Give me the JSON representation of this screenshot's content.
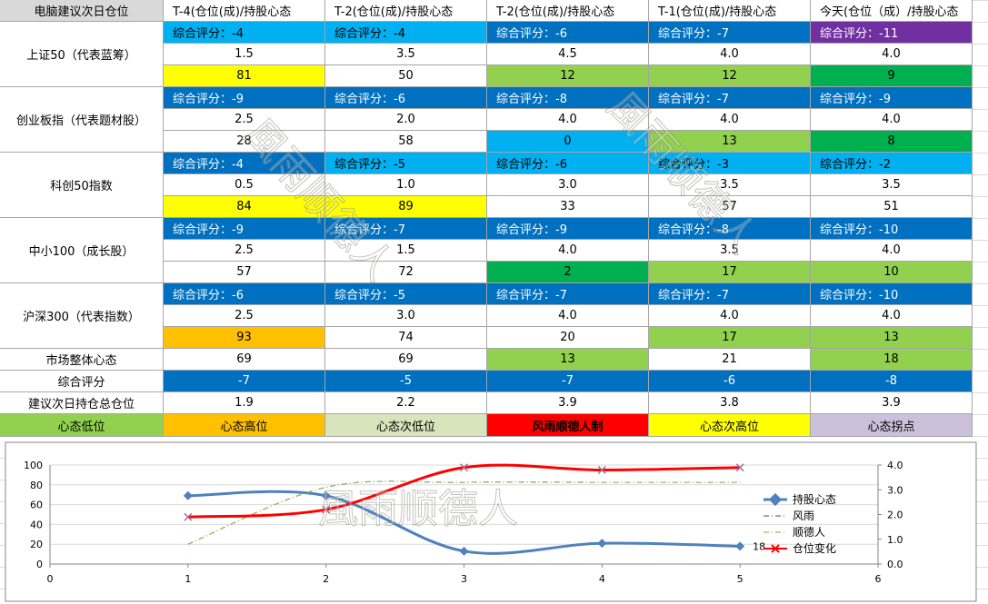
{
  "table": {
    "header": [
      "电脑建议次日仓位",
      "T-4(仓位(成)/持股心态",
      "T-2(仓位(成)/持股心态",
      "T-2(仓位(成)/持股心态",
      "T-1(仓位(成)/持股心态",
      "今天(仓位（成）/持股心态"
    ],
    "groups": [
      {
        "name": "上证50（代表蓝筹）",
        "scores": [
          "综合评分：-4",
          "综合评分：-4",
          "综合评分：-6",
          "综合评分：-7",
          "综合评分：-11"
        ],
        "score_colors": [
          "#00b0f0",
          "#00b0f0",
          "#0070c0",
          "#0070c0",
          "#7030a0"
        ],
        "positions": [
          "1.5",
          "3.5",
          "4.5",
          "4.0",
          "4.0"
        ],
        "moods": [
          81,
          50,
          12,
          12,
          9
        ],
        "mood_colors": [
          "#ffff00",
          "#ffffff",
          "#92d050",
          "#92d050",
          "#00b050"
        ]
      },
      {
        "name": "创业板指（代表题材股）",
        "scores": [
          "综合评分：-9",
          "综合评分：-6",
          "综合评分：-8",
          "综合评分：-7",
          "综合评分：-9"
        ],
        "score_colors": [
          "#0070c0",
          "#0070c0",
          "#0070c0",
          "#0070c0",
          "#0070c0"
        ],
        "positions": [
          "2.5",
          "2.0",
          "4.0",
          "4.0",
          "4.0"
        ],
        "moods": [
          28,
          58,
          0,
          13,
          8
        ],
        "mood_colors": [
          "#ffffff",
          "#ffffff",
          "#00b0f0",
          "#92d050",
          "#00b050"
        ]
      },
      {
        "name": "科创50指数",
        "scores": [
          "综合评分：-4",
          "综合评分：-5",
          "综合评分：-6",
          "综合评分：-3",
          "综合评分：-2"
        ],
        "score_colors": [
          "#0070c0",
          "#00b0f0",
          "#00b0f0",
          "#00b0f0",
          "#00b0f0"
        ],
        "positions": [
          "0.5",
          "1.0",
          "3.0",
          "3.5",
          "3.5"
        ],
        "moods": [
          84,
          89,
          33,
          57,
          51
        ],
        "mood_colors": [
          "#ffff00",
          "#ffff00",
          "#ffffff",
          "#ffffff",
          "#ffffff"
        ]
      },
      {
        "name": "中小100（成长股）",
        "scores": [
          "综合评分：-9",
          "综合评分：-7",
          "综合评分：-9",
          "综合评分：-8",
          "综合评分：-10"
        ],
        "score_colors": [
          "#0070c0",
          "#0070c0",
          "#0070c0",
          "#0070c0",
          "#0070c0"
        ],
        "positions": [
          "2.5",
          "1.5",
          "4.0",
          "3.5",
          "4.0"
        ],
        "moods": [
          57,
          72,
          2,
          17,
          10
        ],
        "mood_colors": [
          "#ffffff",
          "#ffffff",
          "#00b050",
          "#92d050",
          "#92d050"
        ]
      },
      {
        "name": "沪深300（代表指数）",
        "scores": [
          "综合评分：-6",
          "综合评分：-5",
          "综合评分：-7",
          "综合评分：-7",
          "综合评分：-10"
        ],
        "score_colors": [
          "#0070c0",
          "#0070c0",
          "#0070c0",
          "#0070c0",
          "#0070c0"
        ],
        "positions": [
          "2.5",
          "3.0",
          "4.0",
          "4.0",
          "4.0"
        ],
        "moods": [
          93,
          74,
          20,
          17,
          13
        ],
        "mood_colors": [
          "#ffc000",
          "#ffffff",
          "#ffffff",
          "#92d050",
          "#92d050"
        ]
      }
    ],
    "summary": [
      {
        "name": "市场整体心态",
        "values": [
          69,
          69,
          13,
          21,
          18
        ],
        "colors": [
          "#ffffff",
          "#ffffff",
          "#92d050",
          "#ffffff",
          "#92d050"
        ]
      },
      {
        "name": "综合评分",
        "values": [
          -7,
          -5,
          -7,
          -6,
          -8
        ],
        "colors": [
          "#0070c0",
          "#0070c0",
          "#0070c0",
          "#0070c0",
          "#0070c0"
        ]
      },
      {
        "name": "建议次日持仓总仓位",
        "values": [
          "1.9",
          "2.2",
          "3.9",
          "3.8",
          "3.9"
        ],
        "colors": [
          "#ffffff",
          "#ffffff",
          "#ffffff",
          "#ffffff",
          "#ffffff"
        ]
      }
    ],
    "legend": [
      {
        "label": "心态低位",
        "color": "#92d050"
      },
      {
        "label": "心态高位",
        "color": "#ffc000"
      },
      {
        "label": "心态次低位",
        "color": "#d8e4bc"
      },
      {
        "label": "风雨顺德人制",
        "color": "#ff0000"
      },
      {
        "label": "心态次高位",
        "color": "#ffff00"
      },
      {
        "label": "心态拐点",
        "color": "#ccc0da"
      }
    ]
  },
  "watermark": [
    "風雨顺德人",
    "風雨顺德人",
    "風雨顺德人"
  ],
  "chart_data": {
    "type": "line",
    "x": [
      1,
      2,
      3,
      4,
      5
    ],
    "xlim": [
      0,
      6
    ],
    "xticks": [
      0,
      1,
      2,
      3,
      4,
      5,
      6
    ],
    "ylim": [
      0,
      100
    ],
    "yticks": [
      0,
      20,
      40,
      60,
      80,
      100
    ],
    "y2lim": [
      0,
      4
    ],
    "y2ticks": [
      {
        "value": 0,
        "label": "0.0"
      },
      {
        "value": 1,
        "label": "1.0"
      },
      {
        "value": 2,
        "label": "2.0"
      },
      {
        "value": 3,
        "label": "3.0"
      },
      {
        "value": 4,
        "label": "4.0"
      }
    ],
    "grid": true,
    "legend": "right",
    "series": [
      {
        "name": "持股心态",
        "color": "#4f81bd",
        "values": [
          69,
          69,
          13,
          21,
          18
        ],
        "value_labels": [
          null,
          null,
          null,
          null,
          "18"
        ],
        "marker": "diamond",
        "dash": "solid"
      },
      {
        "name": "风雨",
        "color": "#7f5fa8",
        "values": [
          0.8,
          3.1,
          3.3,
          3.3,
          3.3
        ],
        "axis": "y2",
        "marker": "none",
        "dash": "dashdot"
      },
      {
        "name": "顺德人",
        "color": "#9bbb59",
        "values": [
          0.8,
          3.1,
          3.3,
          3.3,
          3.3
        ],
        "axis": "y2",
        "marker": "none",
        "dash": "dashdot"
      },
      {
        "name": "仓位变化",
        "color": "#ff0000",
        "values": [
          1.9,
          2.2,
          3.9,
          3.8,
          3.9
        ],
        "axis": "y2",
        "marker": "x",
        "dash": "solid",
        "marker_color": "#a07090"
      }
    ]
  }
}
